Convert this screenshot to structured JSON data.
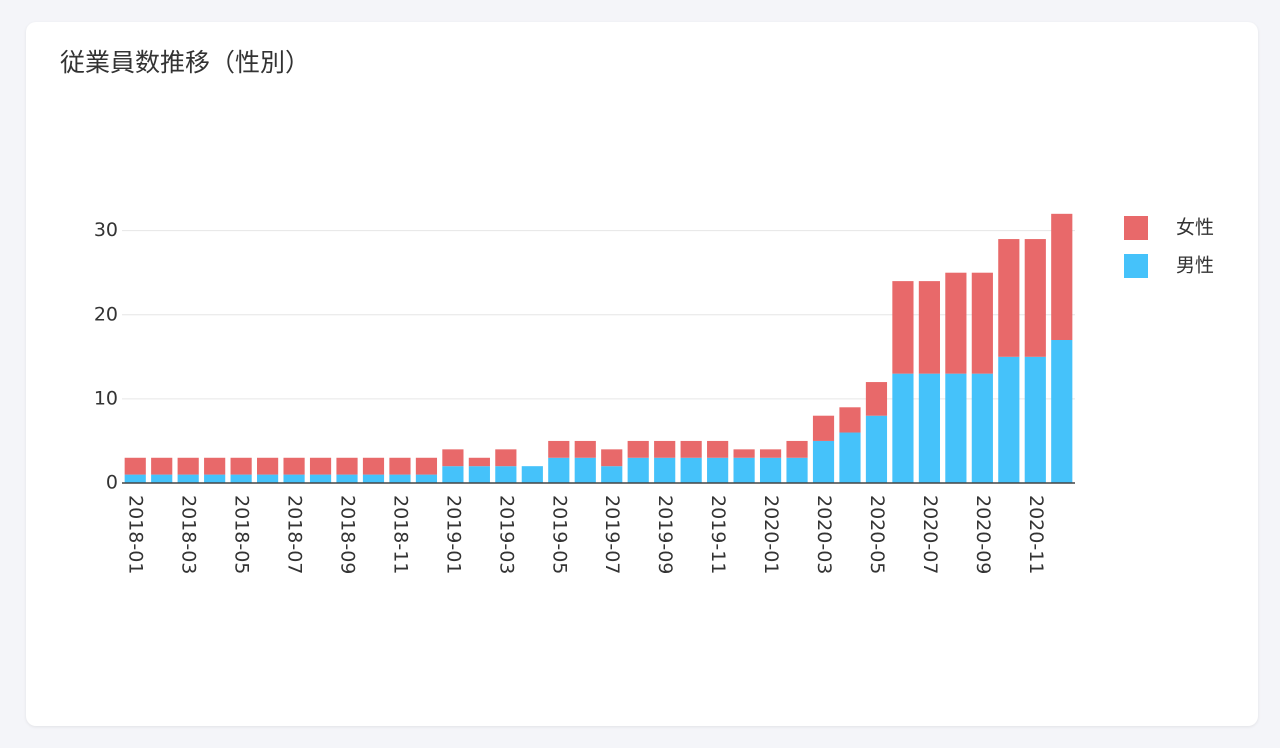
{
  "chart_data": {
    "type": "bar",
    "stacked": true,
    "title": "従業員数推移（性別）",
    "categories": [
      "2018-01",
      null,
      "2018-03",
      null,
      "2018-05",
      null,
      "2018-07",
      null,
      "2018-09",
      null,
      "2018-11",
      null,
      "2019-01",
      null,
      "2019-03",
      null,
      "2019-05",
      null,
      "2019-07",
      null,
      "2019-09",
      null,
      "2019-11",
      null,
      "2020-01",
      null,
      "2020-03",
      null,
      "2020-05",
      null,
      "2020-07",
      null,
      "2020-09",
      null,
      "2020-11",
      null
    ],
    "series": [
      {
        "name": "男性",
        "color": "#45c2fa",
        "values": [
          1,
          1,
          1,
          1,
          1,
          1,
          1,
          1,
          1,
          1,
          1,
          1,
          2,
          2,
          2,
          2,
          3,
          3,
          2,
          3,
          3,
          3,
          3,
          3,
          3,
          3,
          5,
          6,
          8,
          13,
          13,
          13,
          13,
          15,
          15,
          17
        ]
      },
      {
        "name": "女性",
        "color": "#e8696a",
        "values": [
          2,
          2,
          2,
          2,
          2,
          2,
          2,
          2,
          2,
          2,
          2,
          2,
          2,
          1,
          2,
          0,
          2,
          2,
          2,
          2,
          2,
          2,
          2,
          1,
          1,
          2,
          3,
          3,
          4,
          11,
          11,
          12,
          12,
          14,
          14,
          15
        ]
      }
    ],
    "ylim": [
      0,
      34
    ],
    "yticks": [
      0,
      10,
      20,
      30
    ],
    "grid": true,
    "legend": "right"
  }
}
